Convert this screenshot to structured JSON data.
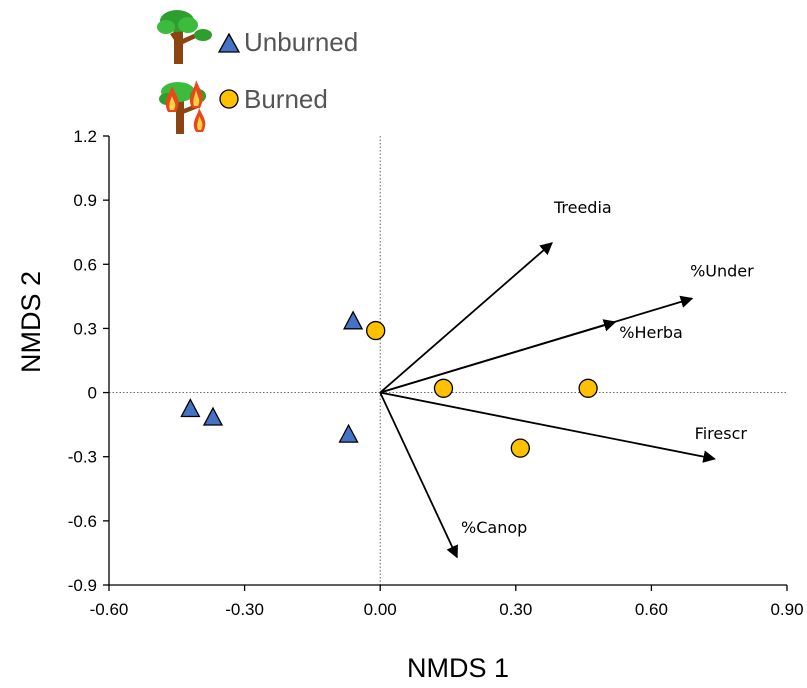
{
  "chart_data": {
    "type": "scatter",
    "xlabel": "NMDS 1",
    "ylabel": "NMDS 2",
    "xlim": [
      -0.6,
      0.9
    ],
    "ylim": [
      -0.9,
      1.2
    ],
    "x_ticks": [
      "-0.60",
      "-0.30",
      "0.00",
      "0.30",
      "0.60",
      "0.90"
    ],
    "y_ticks": [
      "-0.9",
      "-0.6",
      "-0.3",
      "0",
      "0.3",
      "0.6",
      "0.9",
      "1.2"
    ],
    "reference_lines": {
      "x0": true,
      "y0": true,
      "style": "dotted"
    },
    "legend": {
      "placement": "top-left"
    },
    "series": [
      {
        "name": "Unburned",
        "marker": "triangle",
        "color": "#4472C4",
        "icon": "tree-icon",
        "points": [
          {
            "x": -0.42,
            "y": -0.08
          },
          {
            "x": -0.37,
            "y": -0.12
          },
          {
            "x": -0.06,
            "y": 0.33
          },
          {
            "x": -0.07,
            "y": -0.2
          }
        ]
      },
      {
        "name": "Burned",
        "marker": "circle",
        "color": "#FFC000",
        "icon": "burning-tree-icon",
        "points": [
          {
            "x": -0.01,
            "y": 0.29
          },
          {
            "x": 0.14,
            "y": 0.02
          },
          {
            "x": 0.46,
            "y": 0.02
          },
          {
            "x": 0.31,
            "y": -0.26
          }
        ]
      }
    ],
    "vectors": [
      {
        "label": "Treedia",
        "x": 0.38,
        "y": 0.7
      },
      {
        "label": "%Under",
        "x": 0.69,
        "y": 0.44
      },
      {
        "label": "%Herba",
        "x": 0.52,
        "y": 0.33
      },
      {
        "label": "Firescr",
        "x": 0.74,
        "y": -0.31
      },
      {
        "label": "%Canop",
        "x": 0.17,
        "y": -0.77
      }
    ]
  }
}
